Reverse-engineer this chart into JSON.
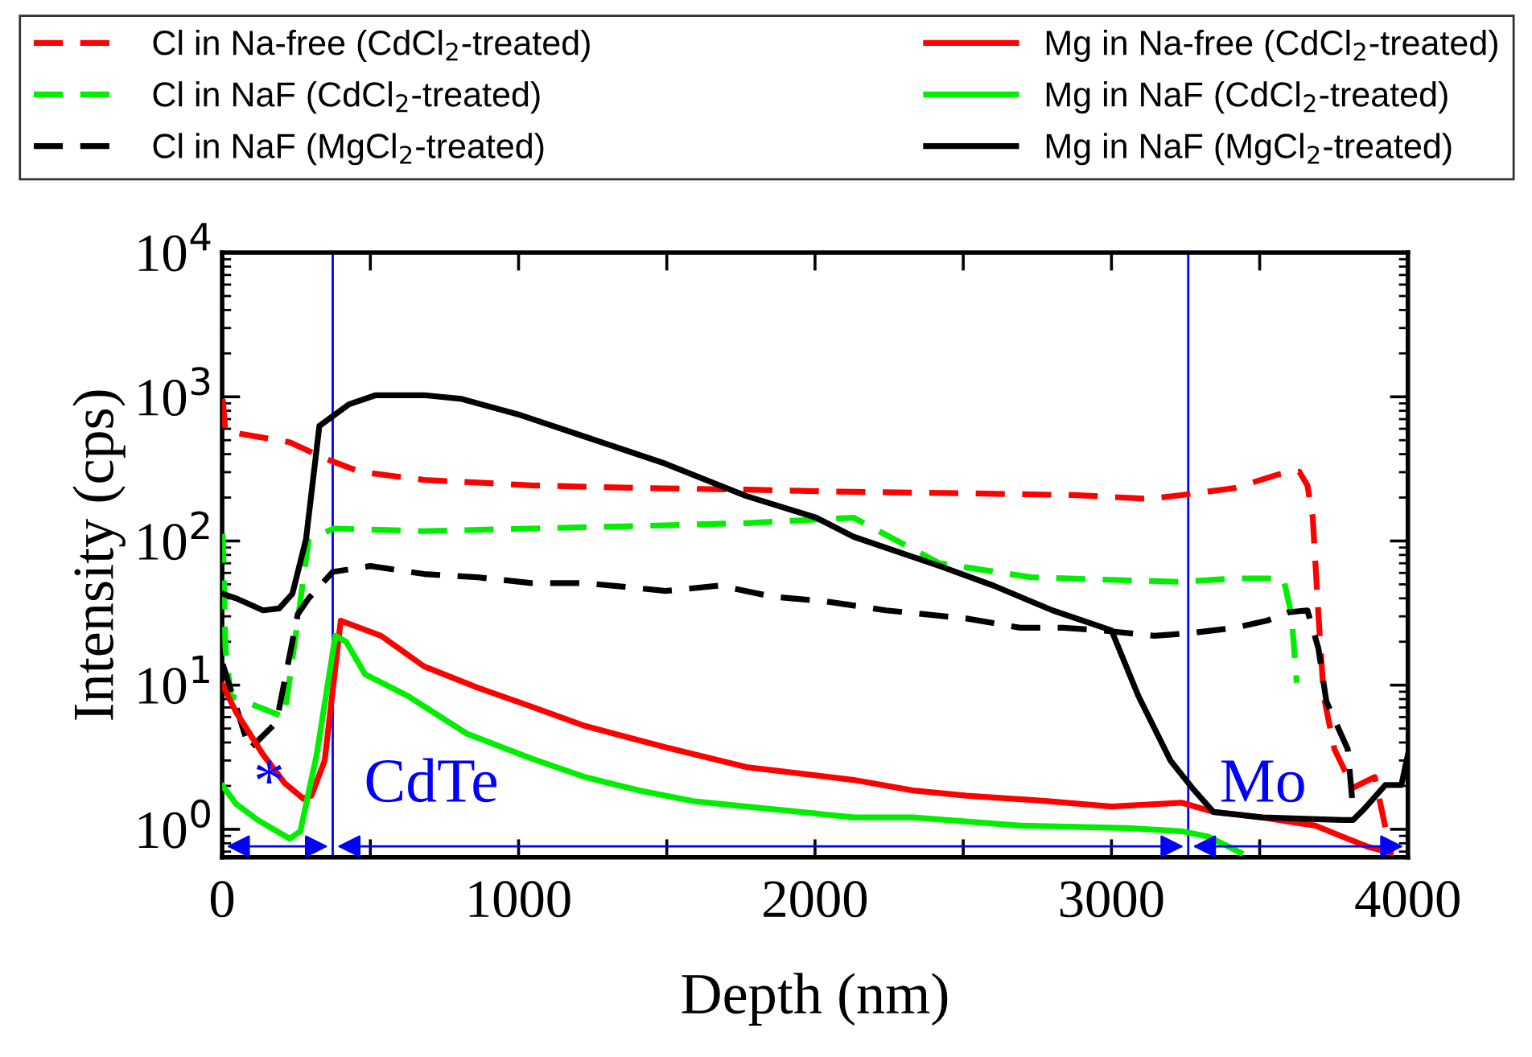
{
  "chart_data": {
    "type": "line",
    "xlabel": "Depth (nm)",
    "ylabel": "Intensity (cps)",
    "log": "y",
    "grid": false,
    "legend": "top",
    "line_style": "solid",
    "marker": "none",
    "xlim": [
      0,
      4000
    ],
    "xticks": [
      0,
      {
        "value": 500,
        "label": null
      },
      1000,
      {
        "value": 1500,
        "label": null
      },
      2000,
      {
        "value": 2500,
        "label": null
      },
      3000,
      {
        "value": 3500,
        "label": null
      },
      4000
    ],
    "ylim": [
      0.64,
      10000
    ],
    "yticks": [
      {
        "value": 1,
        "label": "10$^{0}$"
      },
      {
        "value": 10,
        "label": "10$^{1}$"
      },
      {
        "value": 100,
        "label": "10$^{2}$"
      },
      {
        "value": 1000,
        "label": "10$^{3}$"
      },
      {
        "value": 10000,
        "label": "10$^{4}$"
      }
    ],
    "series": [
      {
        "name": "Cl in Na-free (CdCl$_{2}$-treated)",
        "color": "#ff0000",
        "line_style": "dashed",
        "x": [
          2,
          11,
          228,
          346,
          464,
          681,
          862,
          1043,
          1406,
          1768,
          2130,
          2511,
          2873,
          3127,
          3236,
          3417,
          3562,
          3634,
          3661,
          3679,
          3698,
          3716,
          3752,
          3815,
          3888,
          3942
        ],
        "values": [
          966,
          578,
          484,
          374,
          302,
          265,
          254,
          243,
          233,
          227,
          219,
          214,
          208,
          196,
          208,
          233,
          289,
          302,
          243,
          145,
          31,
          8.4,
          3.6,
          1.94,
          2.3,
          0.69
        ]
      },
      {
        "name": "Cl in NaF (CdCl$_{2}$-treated)",
        "color": "#00ee00",
        "line_style": "dashed",
        "x": [
          2,
          11,
          29,
          210,
          255,
          292,
          377,
          681,
          1043,
          1406,
          1768,
          2130,
          2420,
          2728,
          2964,
          3236,
          3417,
          3580,
          3607,
          3625
        ],
        "values": [
          112,
          18,
          8.4,
          6.0,
          28,
          103,
          122,
          117,
          122,
          127,
          133,
          145,
          70,
          56,
          54,
          52,
          55,
          55,
          31,
          10.4
        ]
      },
      {
        "name": "Cl in NaF (MgCl$_{2}$-treated)",
        "color": "#000000",
        "line_style": "dashed",
        "x": [
          2,
          92,
          183,
          255,
          292,
          373,
          500,
          681,
          862,
          1043,
          1225,
          1406,
          1496,
          1678,
          1859,
          2040,
          2239,
          2511,
          2692,
          2837,
          2964,
          3145,
          3272,
          3417,
          3525,
          3598,
          3661,
          3698,
          3725,
          3797,
          3815
        ],
        "values": [
          14,
          3.6,
          5.5,
          31,
          40,
          61,
          67,
          59,
          56,
          51,
          51,
          47,
          45,
          49,
          41,
          38,
          33,
          29,
          25,
          25,
          24,
          22,
          23,
          25,
          28,
          32,
          33,
          18,
          7.7,
          3.6,
          1.38
        ]
      },
      {
        "name": "Mg in Na-free (CdCl$_{2}$-treated)",
        "color": "#ff0000",
        "x": [
          2,
          47,
          138,
          210,
          274,
          301,
          346,
          400,
          536,
          681,
          862,
          1043,
          1225,
          1496,
          1768,
          2130,
          2330,
          2511,
          2783,
          3000,
          3236,
          3344,
          3507,
          3688,
          3779,
          3870,
          3942
        ],
        "values": [
          10,
          6.5,
          3.3,
          2.1,
          1.63,
          1.71,
          3.0,
          28,
          22,
          13.5,
          9.6,
          7.1,
          5.2,
          3.7,
          2.7,
          2.2,
          1.86,
          1.71,
          1.57,
          1.44,
          1.53,
          1.32,
          1.21,
          1.06,
          0.89,
          0.75,
          0.69
        ]
      },
      {
        "name": "Mg in NaF (CdCl$_{2}$-treated)",
        "color": "#00ee00",
        "x": [
          2,
          47,
          120,
          228,
          264,
          319,
          382,
          418,
          482,
          627,
          826,
          1043,
          1225,
          1406,
          1587,
          1768,
          2130,
          2330,
          2692,
          3054,
          3236,
          3326,
          3435
        ],
        "values": [
          2.0,
          1.5,
          1.16,
          0.86,
          0.97,
          3.3,
          22,
          20,
          11.9,
          8.4,
          4.6,
          3.1,
          2.3,
          1.86,
          1.57,
          1.44,
          1.21,
          1.21,
          1.06,
          1.02,
          0.97,
          0.89,
          0.69
        ]
      },
      {
        "name": "Mg in NaF (MgCl$_{2}$-treated)",
        "color": "#000000",
        "x": [
          2,
          47,
          138,
          192,
          237,
          283,
          328,
          428,
          518,
          681,
          808,
          1007,
          1225,
          1496,
          1768,
          2004,
          2130,
          2420,
          2602,
          2801,
          3000,
          3091,
          3199,
          3272,
          3344,
          3507,
          3779,
          3815,
          3852,
          3924,
          3978,
          4000
        ],
        "values": [
          43,
          40,
          33,
          34,
          43,
          103,
          628,
          887,
          1026,
          1026,
          966,
          746,
          528,
          343,
          205,
          145,
          107,
          67,
          49,
          33,
          24,
          8.4,
          3.0,
          1.94,
          1.32,
          1.21,
          1.16,
          1.16,
          1.38,
          2.03,
          2.03,
          3.3
        ]
      }
    ],
    "ref_lines": [
      {
        "axis": "x",
        "value": 373,
        "color": "#0000ff"
      },
      {
        "axis": "x",
        "value": 3259,
        "color": "#0000ff"
      }
    ],
    "annotations": [
      "*",
      "CdTe",
      "Mo"
    ]
  }
}
